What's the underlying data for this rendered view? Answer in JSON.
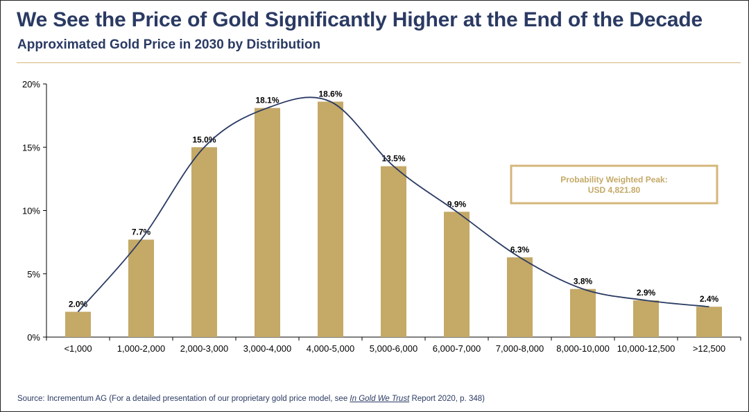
{
  "title": "We See the Price of Gold Significantly Higher at the End of the Decade",
  "subtitle": "Approximated Gold Price in 2030 by Distribution",
  "annotation": {
    "line1": "Probability Weighted Peak:",
    "line2": "USD 4,821.80"
  },
  "source": {
    "prefix": "Source: Incrementum AG (For a detailed presentation of our proprietary gold price model, see ",
    "ref_title": "In Gold We Trust",
    "ref_rest": " Report 2020, p. 348",
    "suffix": ")"
  },
  "colors": {
    "bar": "#c4a967",
    "curve": "#2a3a63",
    "title": "#2a3a63",
    "annotation_border": "#d4b67a",
    "annotation_text": "#c4a967"
  },
  "chart_data": {
    "type": "bar",
    "categories": [
      "<1,000",
      "1,000-2,000",
      "2,000-3,000",
      "3,000-4,000",
      "4,000-5,000",
      "5,000-6,000",
      "6,000-7,000",
      "7,000-8,000",
      "8,000-10,000",
      "10,000-12,500",
      ">12,500"
    ],
    "values": [
      2.0,
      7.7,
      15.0,
      18.1,
      18.6,
      13.5,
      9.9,
      6.3,
      3.8,
      2.9,
      2.4
    ],
    "value_labels": [
      "2.0%",
      "7.7%",
      "15.0%",
      "18.1%",
      "18.6%",
      "13.5%",
      "9.9%",
      "6.3%",
      "3.8%",
      "2.9%",
      "2.4%"
    ],
    "yticks": [
      0,
      5,
      10,
      15,
      20
    ],
    "ytick_labels": [
      "0%",
      "5%",
      "10%",
      "15%",
      "20%"
    ],
    "ylim": [
      0,
      20
    ],
    "grid": false,
    "overlay_curve": {
      "type": "smoothed-line",
      "x": [
        0,
        1,
        2,
        3,
        4,
        5,
        6,
        7,
        8,
        9,
        10
      ],
      "y": [
        2.0,
        7.7,
        15.0,
        18.1,
        18.6,
        13.5,
        9.9,
        6.3,
        3.8,
        2.9,
        2.4
      ]
    }
  }
}
